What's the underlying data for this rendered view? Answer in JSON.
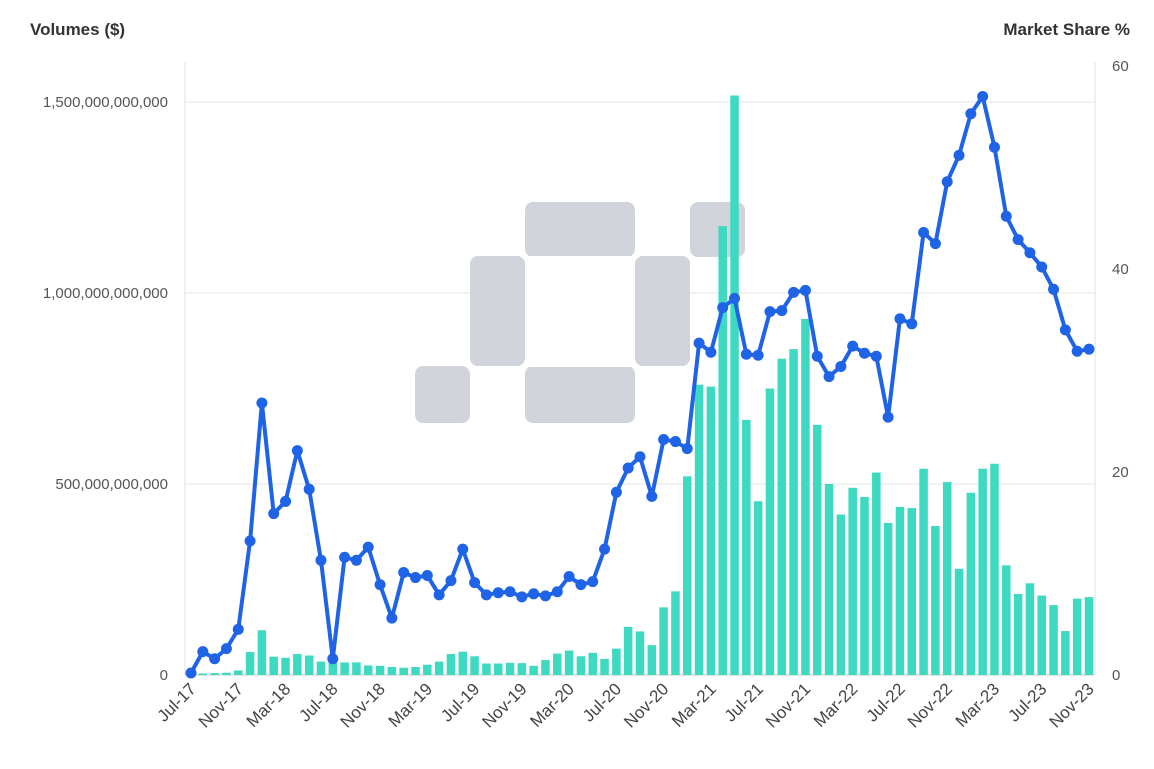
{
  "chart_data": {
    "type": "bar+line",
    "left_axis_title": "Volumes ($)",
    "right_axis_title": "Market Share %",
    "left_ticks": [
      "0",
      "500,000,000,000",
      "1,000,000,000,000",
      "1,500,000,000,000"
    ],
    "left_tick_values": [
      0,
      500000000000,
      1000000000000,
      1500000000000
    ],
    "right_ticks": [
      "0",
      "20",
      "40",
      "60"
    ],
    "right_tick_values": [
      0,
      20,
      40,
      60
    ],
    "ylim_left": [
      0,
      1600000000000
    ],
    "ylim_right": [
      0,
      60
    ],
    "grid": true,
    "x_tick_labels": [
      "Jul-17",
      "Nov-17",
      "Mar-18",
      "Jul-18",
      "Nov-18",
      "Mar-19",
      "Jul-19",
      "Nov-19",
      "Mar-20",
      "Jul-20",
      "Nov-20",
      "Mar-21",
      "Jul-21",
      "Nov-21",
      "Mar-22",
      "Jul-22",
      "Nov-22",
      "Mar-23",
      "Jul-23",
      "Nov-23"
    ],
    "months": [
      "Jul-17",
      "Aug-17",
      "Sep-17",
      "Oct-17",
      "Nov-17",
      "Dec-17",
      "Jan-18",
      "Feb-18",
      "Mar-18",
      "Apr-18",
      "May-18",
      "Jun-18",
      "Jul-18",
      "Aug-18",
      "Sep-18",
      "Oct-18",
      "Nov-18",
      "Dec-18",
      "Jan-19",
      "Feb-19",
      "Mar-19",
      "Apr-19",
      "May-19",
      "Jun-19",
      "Jul-19",
      "Aug-19",
      "Sep-19",
      "Oct-19",
      "Nov-19",
      "Dec-19",
      "Jan-20",
      "Feb-20",
      "Mar-20",
      "Apr-20",
      "May-20",
      "Jun-20",
      "Jul-20",
      "Aug-20",
      "Sep-20",
      "Oct-20",
      "Nov-20",
      "Dec-20",
      "Jan-21",
      "Feb-21",
      "Mar-21",
      "Apr-21",
      "May-21",
      "Jun-21",
      "Jul-21",
      "Aug-21",
      "Sep-21",
      "Oct-21",
      "Nov-21",
      "Dec-21",
      "Jan-22",
      "Feb-22",
      "Mar-22",
      "Apr-22",
      "May-22",
      "Jun-22",
      "Jul-22",
      "Aug-22",
      "Sep-22",
      "Oct-22",
      "Nov-22",
      "Dec-22",
      "Jan-23",
      "Feb-23",
      "Mar-23",
      "Apr-23",
      "May-23",
      "Jun-23",
      "Jul-23",
      "Aug-23",
      "Sep-23",
      "Oct-23",
      "Nov-23"
    ],
    "series": [
      {
        "type": "bar",
        "axis": "left",
        "color": "#3dd9c1",
        "values": [
          3000000000,
          4000000000,
          5000000000,
          6000000000,
          12000000000,
          60000000000,
          117000000000,
          48000000000,
          45000000000,
          55000000000,
          51000000000,
          35000000000,
          35000000000,
          33000000000,
          33000000000,
          25000000000,
          24000000000,
          21000000000,
          19000000000,
          21000000000,
          27000000000,
          35000000000,
          55000000000,
          61000000000,
          49000000000,
          30000000000,
          30000000000,
          32000000000,
          31000000000,
          24000000000,
          39000000000,
          56000000000,
          64000000000,
          49000000000,
          58000000000,
          42000000000,
          69000000000,
          126000000000,
          114000000000,
          78000000000,
          177000000000,
          219000000000,
          520000000000,
          760000000000,
          755000000000,
          1175000000000,
          1517000000000,
          668000000000,
          455000000000,
          750000000000,
          828000000000,
          853000000000,
          932000000000,
          655000000000,
          500000000000,
          420000000000,
          490000000000,
          466000000000,
          530000000000,
          398000000000,
          440000000000,
          437000000000,
          540000000000,
          390000000000,
          505000000000,
          278000000000,
          477000000000,
          540000000000,
          553000000000,
          287000000000,
          212000000000,
          240000000000,
          208000000000,
          183000000000,
          115000000000,
          200000000000,
          204000000000
        ]
      },
      {
        "type": "line",
        "axis": "right",
        "color": "#1f63e6",
        "values": [
          0.2,
          2.3,
          1.6,
          2.6,
          4.5,
          13.2,
          26.8,
          15.9,
          17.1,
          22.1,
          18.3,
          11.3,
          1.6,
          11.6,
          11.3,
          12.6,
          8.9,
          5.6,
          10.1,
          9.6,
          9.8,
          7.9,
          9.3,
          12.4,
          9.1,
          7.9,
          8.1,
          8.2,
          7.7,
          8.0,
          7.8,
          8.2,
          9.7,
          8.9,
          9.2,
          12.4,
          18.0,
          20.4,
          21.5,
          17.6,
          23.2,
          23.0,
          22.3,
          32.7,
          31.8,
          36.2,
          37.1,
          31.6,
          31.5,
          35.8,
          35.9,
          37.7,
          37.9,
          31.4,
          29.4,
          30.4,
          32.4,
          31.7,
          31.4,
          25.4,
          35.1,
          34.6,
          43.6,
          42.5,
          48.6,
          51.2,
          55.3,
          57.0,
          52.0,
          45.2,
          42.9,
          41.6,
          40.2,
          38.0,
          34.0,
          31.9,
          32.1
        ]
      }
    ]
  }
}
